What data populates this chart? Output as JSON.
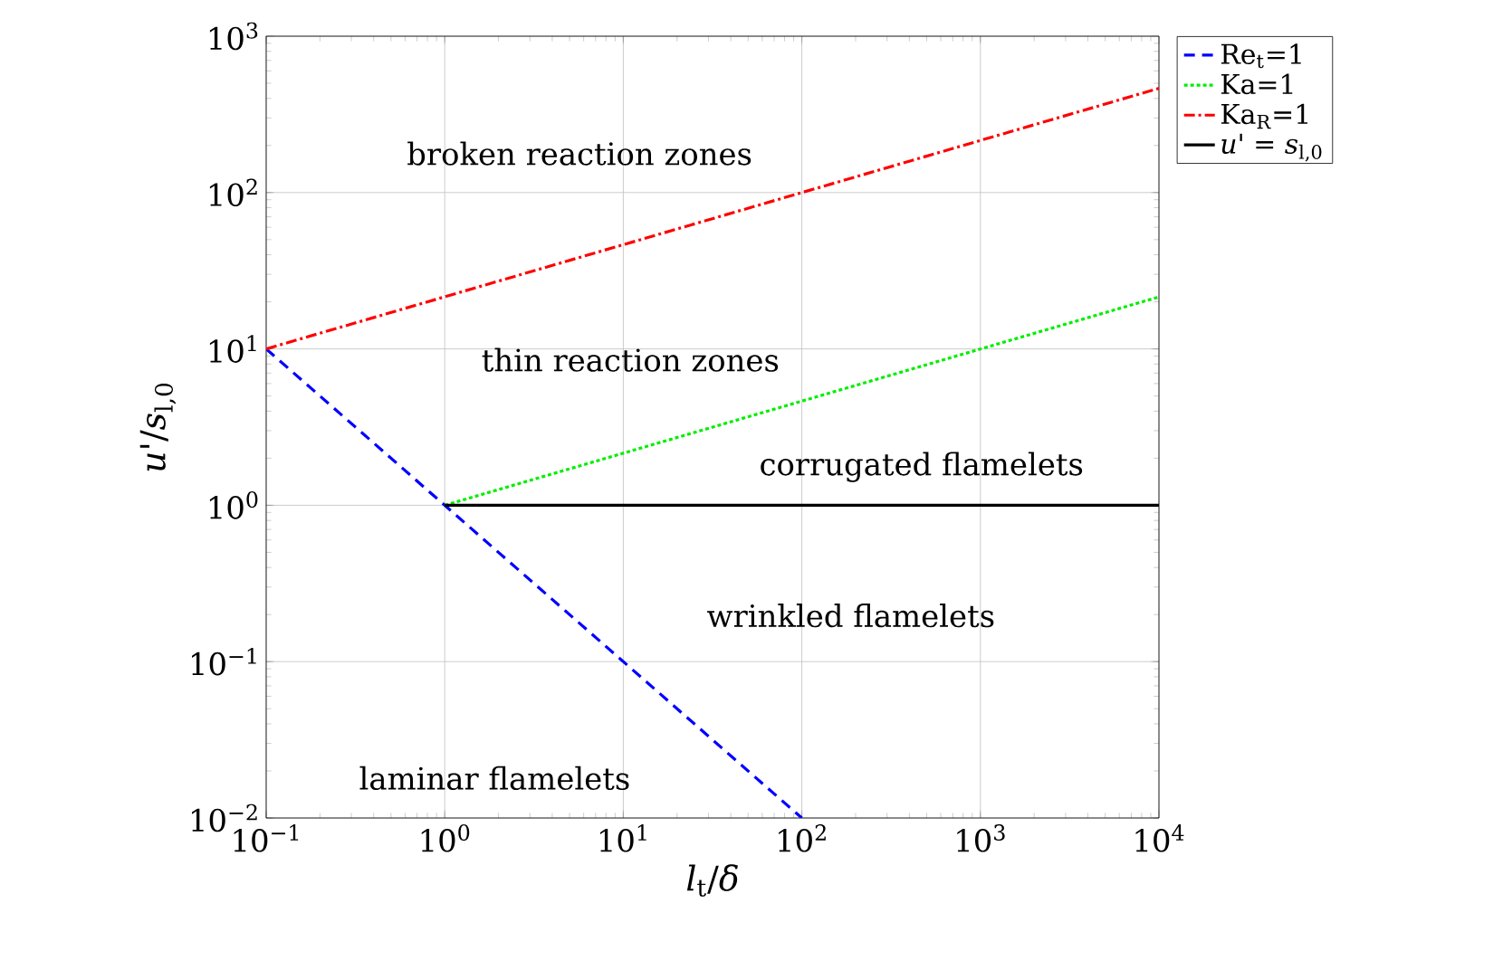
{
  "chart_data": {
    "type": "line",
    "xlabel": "*l*$_{t}$/*δ*",
    "ylabel": "*u*'/*s*$_{l,0}$",
    "log": "xy",
    "grid": true,
    "legend": "top right",
    "marker": "none",
    "xlim": [
      0.1,
      10000
    ],
    "ylim": [
      0.01,
      1000
    ],
    "xticks": [
      {
        "value": 0.1,
        "label": "10$^{−1}$"
      },
      {
        "value": 1,
        "label": "10$^{0}$"
      },
      {
        "value": 10,
        "label": "10$^{1}$"
      },
      {
        "value": 100,
        "label": "10$^{2}$"
      },
      {
        "value": 1000,
        "label": "10$^{3}$"
      },
      {
        "value": 10000,
        "label": "10$^{4}$"
      }
    ],
    "yticks": [
      {
        "value": 0.01,
        "label": "10$^{−2}$"
      },
      {
        "value": 0.1,
        "label": "10$^{−1}$"
      },
      {
        "value": 1,
        "label": "10$^{0}$"
      },
      {
        "value": 10,
        "label": "10$^{1}$"
      },
      {
        "value": 100,
        "label": "10$^{2}$"
      },
      {
        "value": 1000,
        "label": "10$^{3}$"
      }
    ],
    "series": [
      {
        "name": "Re$_{t}$=1",
        "color": "#0000ff",
        "line_style": "dashed",
        "x": [
          0.1,
          100
        ],
        "values": [
          10,
          0.01
        ]
      },
      {
        "name": "Ka=1",
        "color": "#00ee00",
        "line_style": "dotted",
        "x": [
          1,
          10000
        ],
        "values": [
          1,
          21.5
        ]
      },
      {
        "name": "Ka$_{R}$=1",
        "color": "#ff0000",
        "line_style": "dashdot",
        "x": [
          0.1,
          10000
        ],
        "values": [
          10,
          464
        ]
      },
      {
        "name": "*u*' = *s*$_{l,0}$",
        "color": "#000000",
        "line_style": "solid",
        "x": [
          1,
          10000
        ],
        "values": [
          1,
          1
        ]
      }
    ],
    "annotations": [
      "broken reaction zones",
      "thin reaction zones",
      "corrugated flamelets",
      "wrinkled flamelets",
      "laminar flamelets"
    ]
  }
}
